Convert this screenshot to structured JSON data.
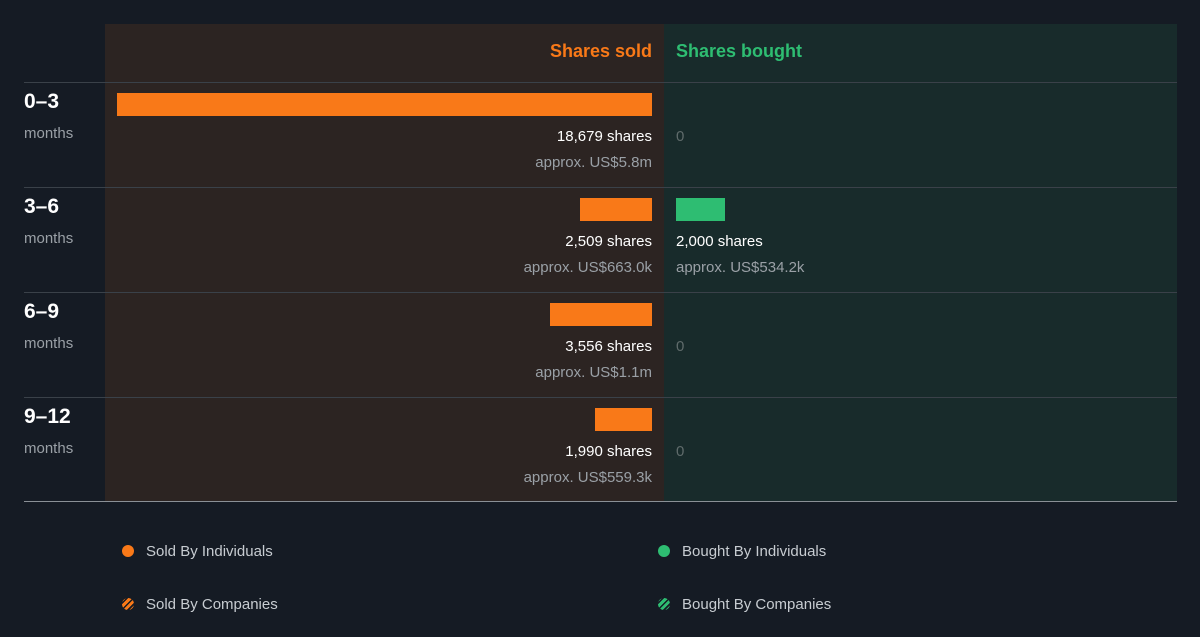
{
  "colors": {
    "sold": "#f97918",
    "bought": "#2ebd72"
  },
  "chart_data": {
    "type": "bar",
    "headers": {
      "sold": "Shares sold",
      "bought": "Shares bought"
    },
    "rows": [
      {
        "period": "0–3",
        "unit": "months",
        "sold": 18679,
        "sold_label": "18,679 shares",
        "sold_value": "approx. US$5.8m",
        "bought": 0,
        "bought_label": "0",
        "bought_value": ""
      },
      {
        "period": "3–6",
        "unit": "months",
        "sold": 2509,
        "sold_label": "2,509 shares",
        "sold_value": "approx. US$663.0k",
        "bought": 2000,
        "bought_label": "2,000 shares",
        "bought_value": "approx. US$534.2k"
      },
      {
        "period": "6–9",
        "unit": "months",
        "sold": 3556,
        "sold_label": "3,556 shares",
        "sold_value": "approx. US$1.1m",
        "bought": 0,
        "bought_label": "0",
        "bought_value": ""
      },
      {
        "period": "9–12",
        "unit": "months",
        "sold": 1990,
        "sold_label": "1,990 shares",
        "sold_value": "approx. US$559.3k",
        "bought": 0,
        "bought_label": "0",
        "bought_value": ""
      }
    ],
    "max_shares": 18679
  },
  "legend": [
    {
      "label": "Sold By Individuals",
      "color": "#f97918",
      "pattern": "solid"
    },
    {
      "label": "Bought By Individuals",
      "color": "#2ebd72",
      "pattern": "solid"
    },
    {
      "label": "Sold By Companies",
      "color": "#f97918",
      "pattern": "striped"
    },
    {
      "label": "Bought By Companies",
      "color": "#2ebd72",
      "pattern": "striped"
    }
  ]
}
